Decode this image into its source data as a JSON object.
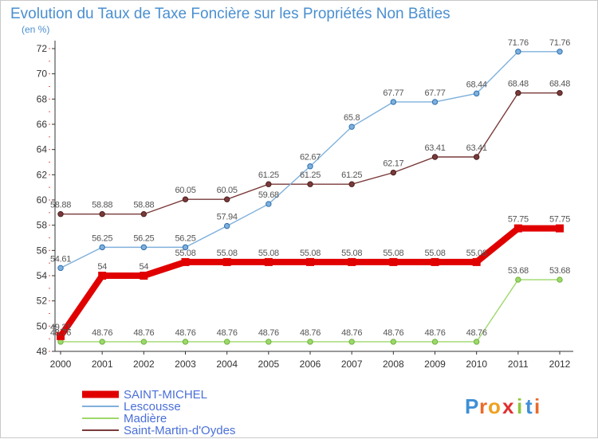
{
  "chart_data": {
    "type": "line",
    "title": "Evolution du Taux de Taxe Foncière sur les Propriétés Non Bâties",
    "subtitle": "(en %)",
    "xlabel": "",
    "ylabel": "",
    "ylim": [
      48,
      72
    ],
    "yticks": [
      48,
      50,
      52,
      54,
      56,
      58,
      60,
      62,
      64,
      66,
      68,
      70,
      72
    ],
    "grid": false,
    "legend_position": "bottom-left",
    "x": [
      "2000",
      "2001",
      "2002",
      "2003",
      "2004",
      "2005",
      "2006",
      "2007",
      "2008",
      "2009",
      "2010",
      "2011",
      "2012"
    ],
    "series": [
      {
        "name": "SAINT-MICHEL",
        "color": "#e00000",
        "values": [
          49.21,
          54,
          54,
          55.08,
          55.08,
          55.08,
          55.08,
          55.08,
          55.08,
          55.08,
          55.08,
          57.75,
          57.75
        ],
        "labels": [
          "49.21",
          "54",
          "54",
          "55.08",
          "55.08",
          "55.08",
          "55.08",
          "55.08",
          "55.08",
          "55.08",
          "55.08",
          "57.75",
          "57.75"
        ]
      },
      {
        "name": "Lescousse",
        "color": "#7fb0dc",
        "values": [
          54.61,
          56.25,
          56.25,
          56.25,
          57.94,
          59.68,
          62.67,
          65.8,
          67.77,
          67.77,
          68.44,
          71.76,
          71.76
        ],
        "labels": [
          "54.61",
          "56.25",
          "56.25",
          "56.25",
          "57.94",
          "59.68",
          "62.67",
          "65.8",
          "67.77",
          "67.77",
          "68.44",
          "71.76",
          "71.76"
        ]
      },
      {
        "name": "Madière",
        "color": "#9ed86a",
        "values": [
          48.76,
          48.76,
          48.76,
          48.76,
          48.76,
          48.76,
          48.76,
          48.76,
          48.76,
          48.76,
          48.76,
          53.68,
          53.68
        ],
        "labels": [
          "48.76",
          "48.76",
          "48.76",
          "48.76",
          "48.76",
          "48.76",
          "48.76",
          "48.76",
          "48.76",
          "48.76",
          "48.76",
          "53.68",
          "53.68"
        ]
      },
      {
        "name": "Saint-Martin-d'Oydes",
        "color": "#7a3a3a",
        "values": [
          58.88,
          58.88,
          58.88,
          60.05,
          60.05,
          61.25,
          61.25,
          61.25,
          62.17,
          63.41,
          63.41,
          68.48,
          68.48
        ],
        "labels": [
          "58.88",
          "58.88",
          "58.88",
          "60.05",
          "60.05",
          "61.25",
          "61.25",
          "61.25",
          "62.17",
          "63.41",
          "63.41",
          "68.48",
          "68.48"
        ]
      }
    ]
  },
  "brand": {
    "logo_letters": [
      "P",
      "r",
      "o",
      "x",
      "i",
      "t",
      "i"
    ],
    "logo_colors": [
      "#3f8fd6",
      "#e86a2a",
      "#f0a020",
      "#e03030",
      "#8cc63f",
      "#3f8fd6",
      "#e86a2a"
    ]
  }
}
